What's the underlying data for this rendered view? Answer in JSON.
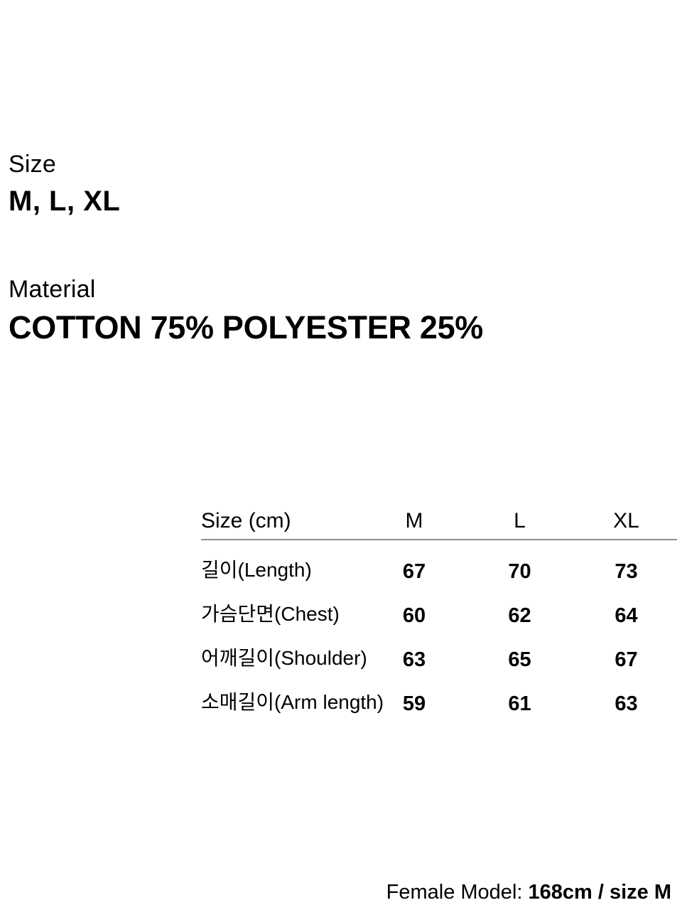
{
  "size_section": {
    "label": "Size",
    "value": "M, L, XL"
  },
  "material_section": {
    "label": "Material",
    "value": "COTTON 75% POLYESTER 25%"
  },
  "size_table": {
    "header": {
      "label": "Size (cm)",
      "col_m": "M",
      "col_l": "L",
      "col_xl": "XL"
    },
    "rows": [
      {
        "label": "길이(Length)",
        "values": [
          "67",
          "70",
          "73"
        ]
      },
      {
        "label": "가슴단면(Chest)",
        "values": [
          "60",
          "62",
          "64"
        ]
      },
      {
        "label": "어깨길이(Shoulder)",
        "values": [
          "63",
          "65",
          "67"
        ]
      },
      {
        "label": "소매길이(Arm length)",
        "values": [
          "59",
          "61",
          "63"
        ]
      }
    ]
  },
  "footer": {
    "model_label": "Female Model: ",
    "model_value": "168cm / size M"
  }
}
